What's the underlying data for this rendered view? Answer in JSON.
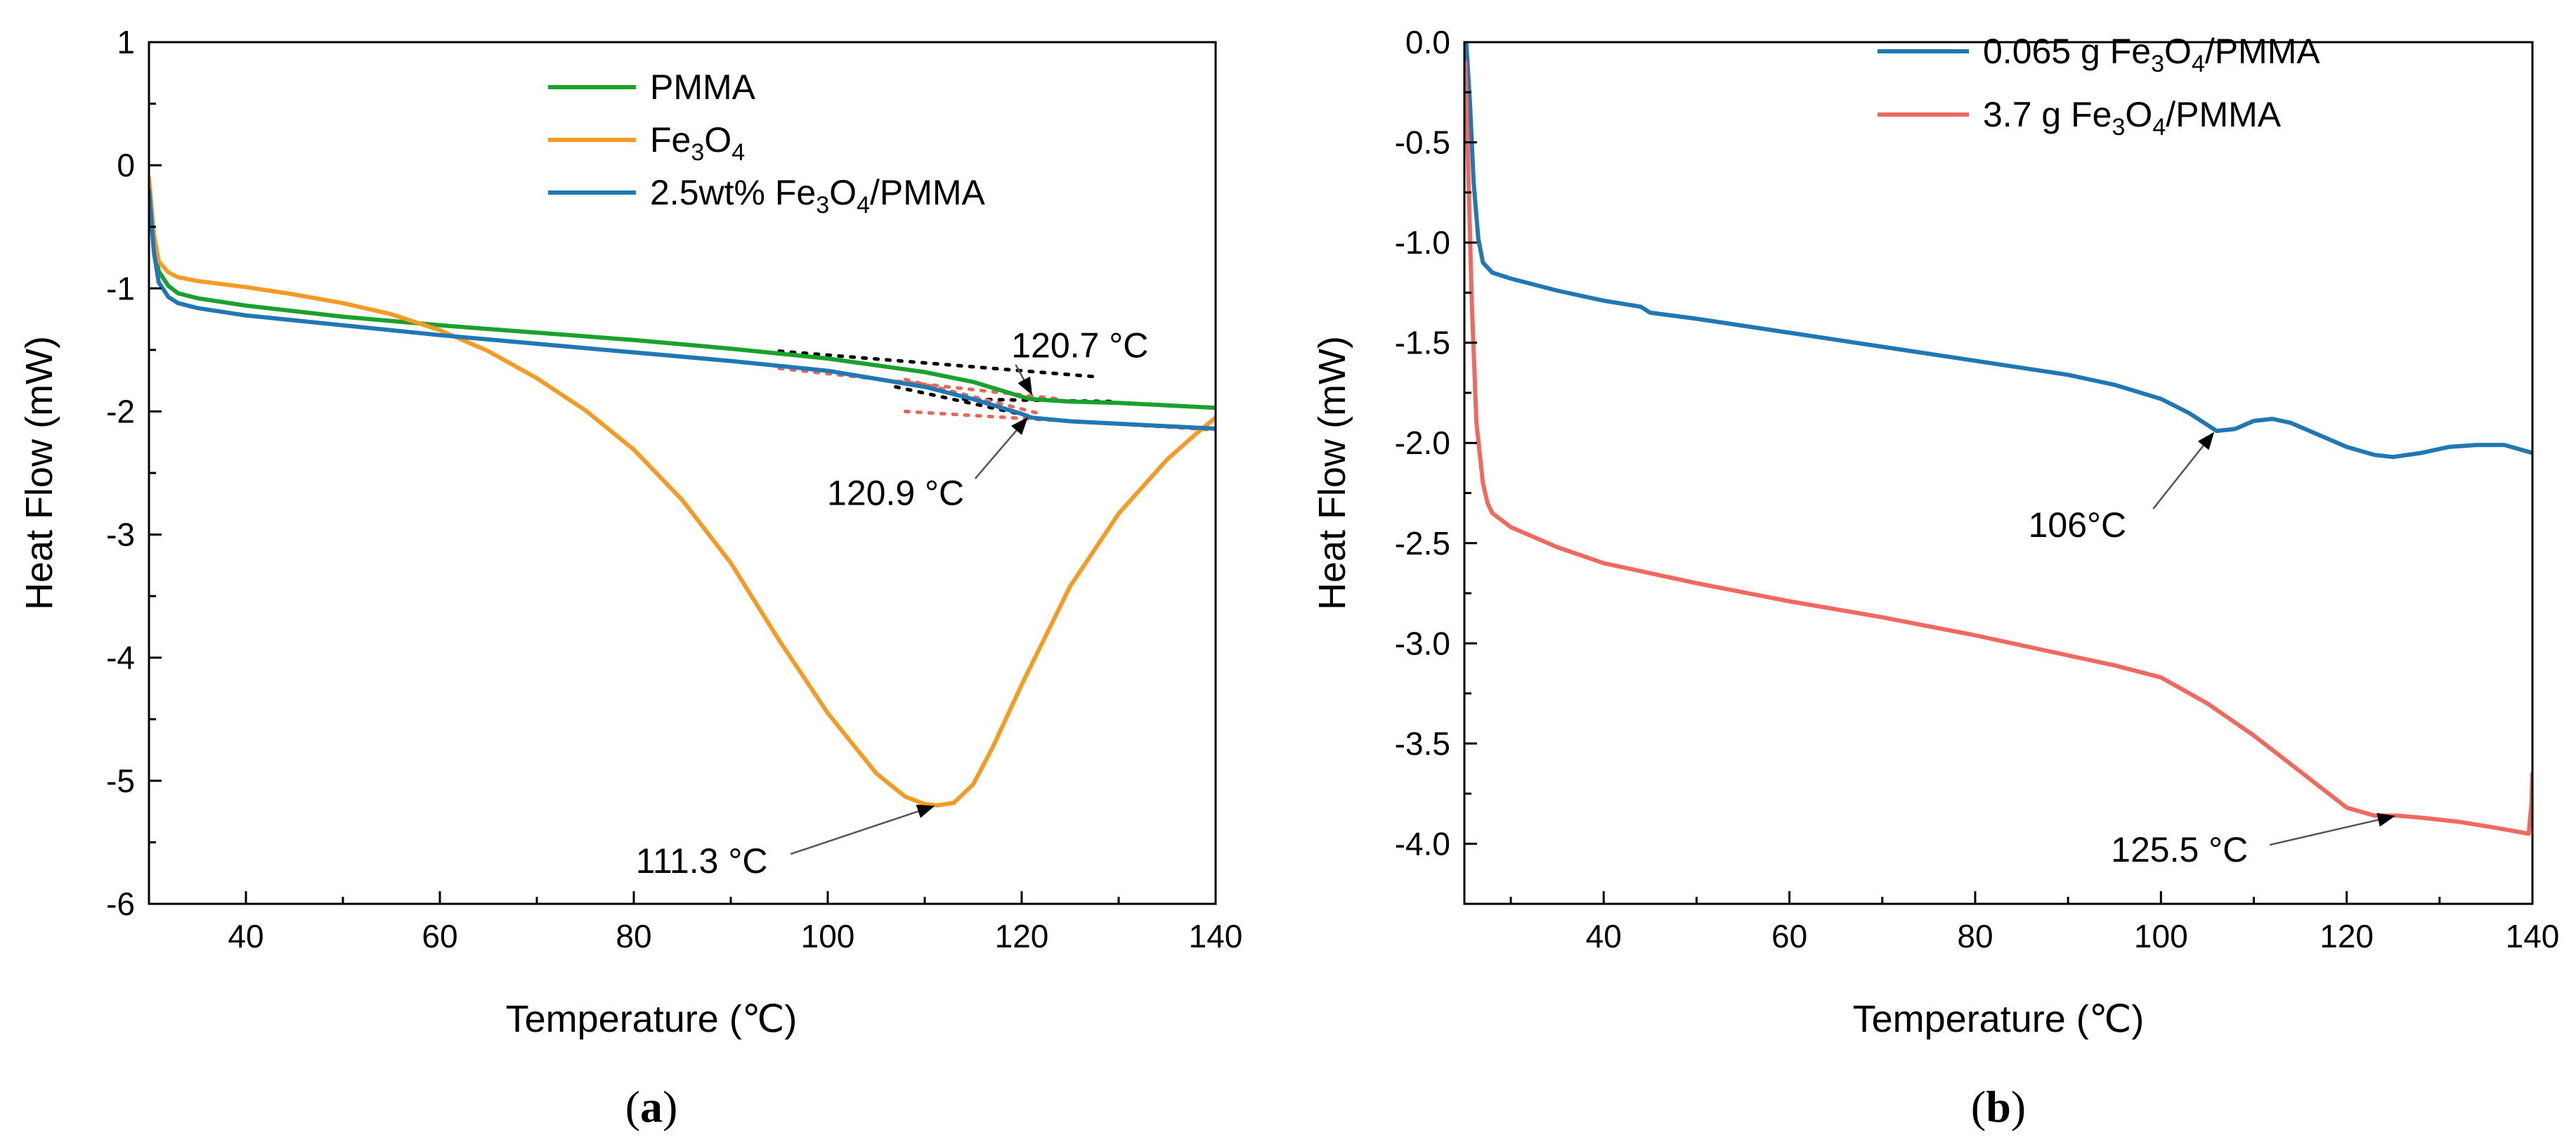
{
  "chart_data": [
    {
      "panel": "(a)",
      "type": "line",
      "title": "",
      "xlabel": "Temperature (℃)",
      "ylabel": "Heat Flow (mW)",
      "xlim": [
        30,
        140
      ],
      "ylim": [
        -6,
        1
      ],
      "xticks": [
        40,
        60,
        80,
        100,
        120,
        140
      ],
      "yticks": [
        1,
        0,
        -1,
        -2,
        -3,
        -4,
        -5,
        -6
      ],
      "legend_position": "top-right",
      "series": [
        {
          "name": "PMMA",
          "legend_parts": [
            "PMMA"
          ],
          "color": "#1aa12b",
          "points": [
            [
              30,
              -0.15
            ],
            [
              30.5,
              -0.62
            ],
            [
              31,
              -0.86
            ],
            [
              32,
              -0.98
            ],
            [
              33,
              -1.04
            ],
            [
              35,
              -1.08
            ],
            [
              40,
              -1.14
            ],
            [
              50,
              -1.23
            ],
            [
              60,
              -1.3
            ],
            [
              70,
              -1.36
            ],
            [
              80,
              -1.42
            ],
            [
              90,
              -1.49
            ],
            [
              100,
              -1.57
            ],
            [
              110,
              -1.68
            ],
            [
              115,
              -1.76
            ],
            [
              120,
              -1.88
            ],
            [
              121,
              -1.9
            ],
            [
              125,
              -1.92
            ],
            [
              130,
              -1.93
            ],
            [
              140,
              -1.97
            ]
          ]
        },
        {
          "name": "Fe3O4",
          "legend_parts": [
            "Fe",
            "3",
            "O",
            "4"
          ],
          "color": "#f59a23",
          "points": [
            [
              30,
              -0.1
            ],
            [
              30.5,
              -0.55
            ],
            [
              31,
              -0.78
            ],
            [
              32,
              -0.87
            ],
            [
              33,
              -0.91
            ],
            [
              35,
              -0.94
            ],
            [
              40,
              -0.99
            ],
            [
              45,
              -1.05
            ],
            [
              50,
              -1.12
            ],
            [
              55,
              -1.21
            ],
            [
              60,
              -1.34
            ],
            [
              65,
              -1.51
            ],
            [
              70,
              -1.73
            ],
            [
              75,
              -1.99
            ],
            [
              80,
              -2.31
            ],
            [
              85,
              -2.72
            ],
            [
              90,
              -3.23
            ],
            [
              95,
              -3.86
            ],
            [
              100,
              -4.45
            ],
            [
              105,
              -4.94
            ],
            [
              108,
              -5.13
            ],
            [
              110,
              -5.19
            ],
            [
              111.3,
              -5.2
            ],
            [
              113,
              -5.18
            ],
            [
              115,
              -5.03
            ],
            [
              117,
              -4.73
            ],
            [
              120,
              -4.22
            ],
            [
              125,
              -3.42
            ],
            [
              130,
              -2.83
            ],
            [
              135,
              -2.39
            ],
            [
              138,
              -2.18
            ],
            [
              140,
              -2.05
            ]
          ]
        },
        {
          "name": "2.5wt% Fe3O4/PMMA",
          "legend_parts": [
            "2.5wt% Fe",
            "3",
            "O",
            "4",
            "/PMMA"
          ],
          "color": "#1f77b4",
          "points": [
            [
              30,
              -0.2
            ],
            [
              30.5,
              -0.7
            ],
            [
              31,
              -0.95
            ],
            [
              32,
              -1.07
            ],
            [
              33,
              -1.12
            ],
            [
              35,
              -1.16
            ],
            [
              40,
              -1.22
            ],
            [
              50,
              -1.3
            ],
            [
              60,
              -1.38
            ],
            [
              70,
              -1.45
            ],
            [
              80,
              -1.52
            ],
            [
              90,
              -1.59
            ],
            [
              100,
              -1.67
            ],
            [
              110,
              -1.8
            ],
            [
              115,
              -1.9
            ],
            [
              120,
              -2.02
            ],
            [
              121,
              -2.05
            ],
            [
              125,
              -2.08
            ],
            [
              130,
              -2.1
            ],
            [
              140,
              -2.14
            ]
          ]
        }
      ],
      "guide_lines": [
        {
          "color": "#000000",
          "points": [
            [
              95,
              -1.51
            ],
            [
              128,
              -1.72
            ]
          ]
        },
        {
          "color": "#000000",
          "points": [
            [
              107,
              -1.8
            ],
            [
              121,
              -2.04
            ]
          ]
        },
        {
          "color": "#000000",
          "points": [
            [
              114,
              -1.9
            ],
            [
              130,
              -1.92
            ]
          ]
        },
        {
          "color": "#e8655a",
          "points": [
            [
              95,
              -1.65
            ],
            [
              124,
              -1.9
            ]
          ]
        },
        {
          "color": "#e8655a",
          "points": [
            [
              108,
              -1.74
            ],
            [
              122,
              -2.02
            ]
          ]
        },
        {
          "color": "#e8655a",
          "points": [
            [
              108,
              -2.0
            ],
            [
              140,
              -2.15
            ]
          ]
        }
      ],
      "annotations": [
        {
          "text": "120.7 °C",
          "point": [
            120.7,
            -1.88
          ],
          "label_at": [
            126,
            -1.56
          ]
        },
        {
          "text": "120.9 °C",
          "point": [
            120.9,
            -2.04
          ],
          "label_at": [
            107,
            -2.76
          ]
        },
        {
          "text": "111.3 °C",
          "point": [
            111.3,
            -5.2
          ],
          "label_at": [
            87,
            -5.75
          ]
        }
      ]
    },
    {
      "panel": "(b)",
      "type": "line",
      "title": "",
      "xlabel": "Temperature (℃)",
      "ylabel": "Heat Flow (mW)",
      "xlim": [
        25,
        140
      ],
      "ylim": [
        -4.3,
        0
      ],
      "xticks": [
        40,
        60,
        80,
        100,
        120,
        140
      ],
      "yticks": [
        0.0,
        -0.5,
        -1.0,
        -1.5,
        -2.0,
        -2.5,
        -3.0,
        -3.5,
        -4.0
      ],
      "ytick_labels": [
        "0.0",
        "-0.5",
        "-1.0",
        "-1.5",
        "-2.0",
        "-2.5",
        "-3.0",
        "-3.5",
        "-4.0"
      ],
      "legend_position": "top-right",
      "series": [
        {
          "name": "0.065 g Fe3O4/PMMA",
          "legend_parts": [
            "0.065 g Fe",
            "3",
            "O",
            "4",
            "/PMMA"
          ],
          "color": "#1f77b4",
          "points": [
            [
              25.2,
              0.0
            ],
            [
              25.6,
              -0.3
            ],
            [
              26,
              -0.7
            ],
            [
              26.5,
              -0.98
            ],
            [
              27,
              -1.1
            ],
            [
              28,
              -1.15
            ],
            [
              30,
              -1.18
            ],
            [
              35,
              -1.24
            ],
            [
              40,
              -1.29
            ],
            [
              44,
              -1.32
            ],
            [
              45,
              -1.35
            ],
            [
              50,
              -1.38
            ],
            [
              60,
              -1.45
            ],
            [
              70,
              -1.52
            ],
            [
              80,
              -1.59
            ],
            [
              90,
              -1.66
            ],
            [
              95,
              -1.71
            ],
            [
              100,
              -1.78
            ],
            [
              103,
              -1.85
            ],
            [
              106,
              -1.94
            ],
            [
              108,
              -1.93
            ],
            [
              110,
              -1.89
            ],
            [
              112,
              -1.88
            ],
            [
              114,
              -1.9
            ],
            [
              117,
              -1.96
            ],
            [
              120,
              -2.02
            ],
            [
              123,
              -2.06
            ],
            [
              125,
              -2.07
            ],
            [
              128,
              -2.05
            ],
            [
              131,
              -2.02
            ],
            [
              134,
              -2.01
            ],
            [
              137,
              -2.01
            ],
            [
              140,
              -2.05
            ]
          ]
        },
        {
          "name": "3.7 g Fe3O4/PMMA",
          "legend_parts": [
            "3.7 g Fe",
            "3",
            "O",
            "4",
            "/PMMA"
          ],
          "color": "#f0695e",
          "points": [
            [
              25.1,
              -0.1
            ],
            [
              25.4,
              -0.6
            ],
            [
              25.8,
              -1.3
            ],
            [
              26.3,
              -1.9
            ],
            [
              27,
              -2.2
            ],
            [
              27.5,
              -2.3
            ],
            [
              28,
              -2.35
            ],
            [
              30,
              -2.42
            ],
            [
              35,
              -2.52
            ],
            [
              40,
              -2.6
            ],
            [
              50,
              -2.7
            ],
            [
              60,
              -2.79
            ],
            [
              70,
              -2.87
            ],
            [
              80,
              -2.96
            ],
            [
              90,
              -3.06
            ],
            [
              95,
              -3.11
            ],
            [
              100,
              -3.17
            ],
            [
              105,
              -3.3
            ],
            [
              110,
              -3.46
            ],
            [
              115,
              -3.64
            ],
            [
              120,
              -3.82
            ],
            [
              123,
              -3.86
            ],
            [
              125.5,
              -3.86
            ],
            [
              128,
              -3.87
            ],
            [
              132,
              -3.89
            ],
            [
              136,
              -3.92
            ],
            [
              139.6,
              -3.95
            ],
            [
              139.9,
              -3.8
            ],
            [
              140,
              -3.65
            ]
          ]
        }
      ],
      "annotations": [
        {
          "text": "106°C",
          "point": [
            106,
            -1.94
          ],
          "label_at": [
            91,
            -2.47
          ]
        },
        {
          "text": "125.5 °C",
          "point": [
            125.5,
            -3.86
          ],
          "label_at": [
            102,
            -4.09
          ]
        }
      ]
    }
  ]
}
